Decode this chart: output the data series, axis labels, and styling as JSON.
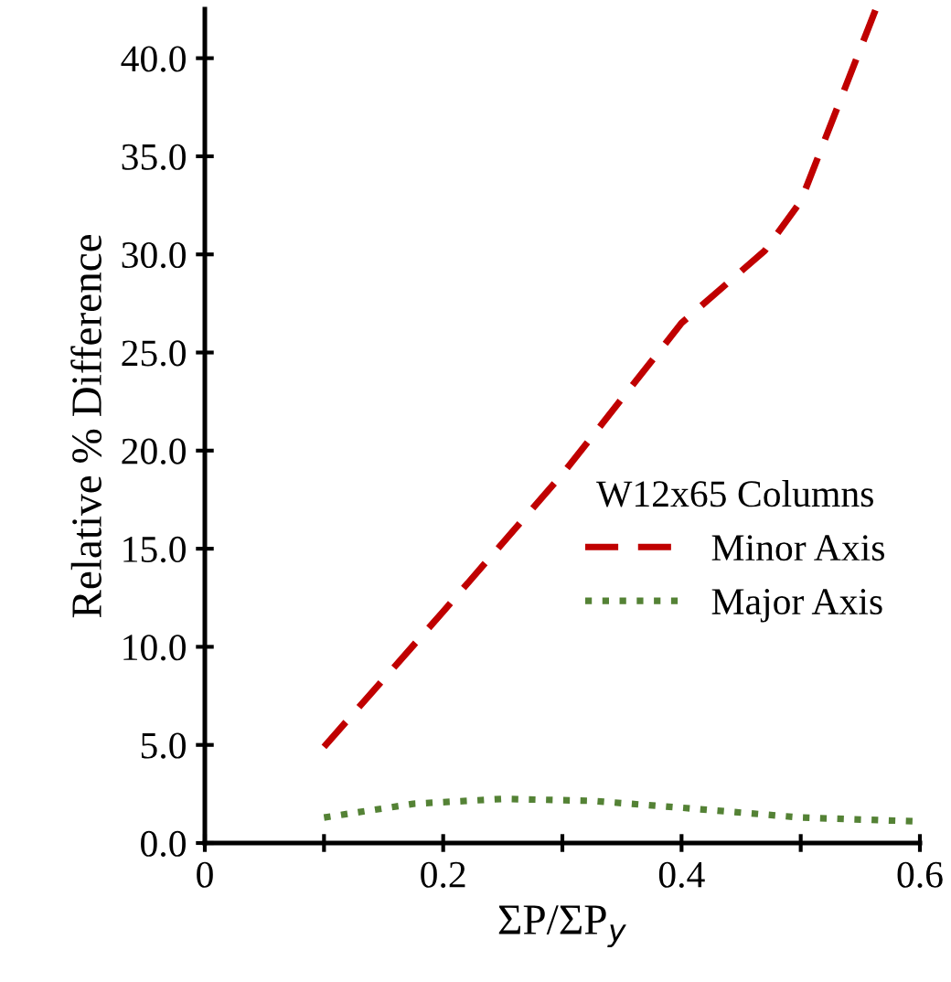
{
  "chart_data": {
    "type": "line",
    "xlabel": "ΣP/ΣP$_{y}$",
    "ylabel": "Relative % Difference",
    "legend_title": "W12x65 Columns",
    "legend": "right",
    "xlim": [
      0,
      0.6
    ],
    "xticks": [
      0,
      {
        "value": 0.1,
        "label": null
      },
      0.2,
      {
        "value": 0.3,
        "label": null
      },
      0.4,
      {
        "value": 0.5,
        "label": null
      },
      0.6
    ],
    "ylim": [
      0,
      42.5
    ],
    "yticks": [
      {
        "value": 0,
        "label": "0.0"
      },
      {
        "value": 5,
        "label": "5.0"
      },
      {
        "value": 10,
        "label": "10.0"
      },
      {
        "value": 15,
        "label": "15.0"
      },
      {
        "value": 20,
        "label": "20.0"
      },
      {
        "value": 25,
        "label": "25.0"
      },
      {
        "value": 30,
        "label": "30.0"
      },
      {
        "value": 35,
        "label": "35.0"
      },
      {
        "value": 40,
        "label": "40.0"
      }
    ],
    "grid": false,
    "series": [
      {
        "name": "Minor Axis",
        "color": "#c00000",
        "line_style": "dashed",
        "x": [
          0.1,
          0.2,
          0.3,
          0.4,
          0.47,
          0.5,
          0.563
        ],
        "values": [
          4.9,
          11.8,
          18.8,
          26.5,
          30.2,
          32.7,
          42.5
        ]
      },
      {
        "name": "Major Axis",
        "color": "#548235",
        "line_style": "dotted",
        "x": [
          0.1,
          0.175,
          0.25,
          0.325,
          0.4,
          0.5,
          0.6
        ],
        "values": [
          1.3,
          2.0,
          2.25,
          2.15,
          1.8,
          1.3,
          1.1
        ]
      }
    ]
  }
}
